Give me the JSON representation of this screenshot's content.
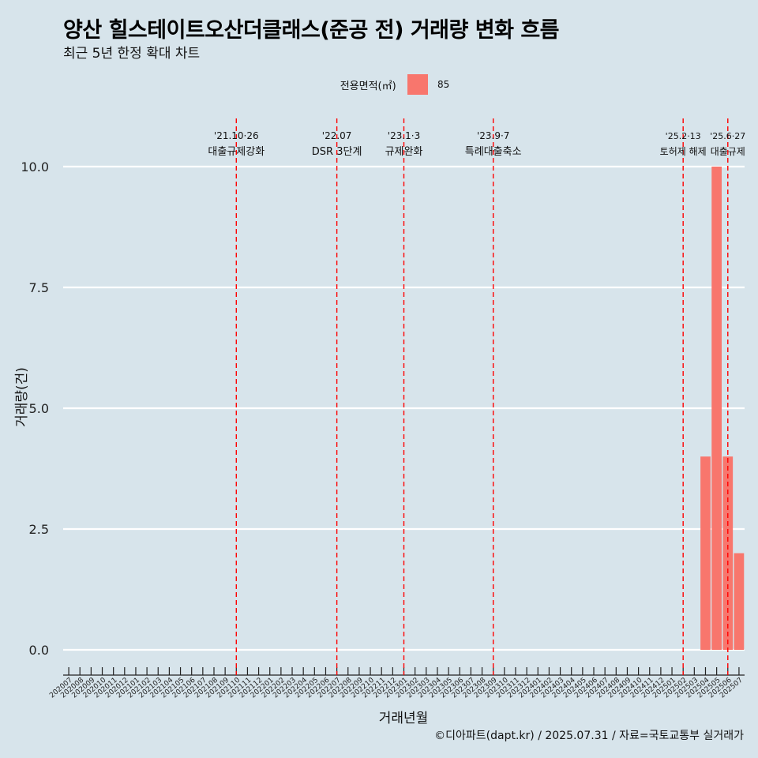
{
  "chart_data": {
    "type": "bar",
    "title": "양산 힐스테이트오산더클래스(준공 전) 거래량 변화 흐름",
    "subtitle": "최근 5년 한정 확대 차트",
    "xlabel": "거래년월",
    "ylabel": "거래량(건)",
    "ylim": [
      0,
      10.5
    ],
    "yticks": [
      "0.0",
      "2.5",
      "5.0",
      "7.5",
      "10.0"
    ],
    "legend": {
      "title": "전용면적(㎡)",
      "entries": [
        {
          "name": "85",
          "color": "#f8766d"
        }
      ],
      "position": "top"
    },
    "categories": [
      "202007",
      "202008",
      "202009",
      "202010",
      "202011",
      "202012",
      "202101",
      "202102",
      "202103",
      "202104",
      "202105",
      "202106",
      "202107",
      "202108",
      "202109",
      "202110",
      "202111",
      "202112",
      "202201",
      "202202",
      "202203",
      "202204",
      "202205",
      "202206",
      "202207",
      "202208",
      "202209",
      "202210",
      "202211",
      "202212",
      "202301",
      "202302",
      "202303",
      "202304",
      "202305",
      "202306",
      "202307",
      "202308",
      "202309",
      "202310",
      "202311",
      "202312",
      "202401",
      "202402",
      "202403",
      "202404",
      "202405",
      "202406",
      "202407",
      "202408",
      "202409",
      "202410",
      "202411",
      "202412",
      "202501",
      "202502",
      "202503",
      "202504",
      "202505",
      "202506",
      "202507"
    ],
    "values": [
      0,
      0,
      0,
      0,
      0,
      0,
      0,
      0,
      0,
      0,
      0,
      0,
      0,
      0,
      0,
      0,
      0,
      0,
      0,
      0,
      0,
      0,
      0,
      0,
      0,
      0,
      0,
      0,
      0,
      0,
      0,
      0,
      0,
      0,
      0,
      0,
      0,
      0,
      0,
      0,
      0,
      0,
      0,
      0,
      0,
      0,
      0,
      0,
      0,
      0,
      0,
      0,
      0,
      0,
      0,
      0,
      0,
      4,
      10,
      4,
      2
    ],
    "bar_color": "#f8766d",
    "grid": true,
    "annotations": [
      {
        "date": "202110",
        "date_label": "'21.10·26",
        "text": "대출규제강화"
      },
      {
        "date": "202207",
        "date_label": "'22.07",
        "text": "DSR 3단계"
      },
      {
        "date": "202301",
        "date_label": "'23.1·3",
        "text": "규제완화"
      },
      {
        "date": "202309",
        "date_label": "'23.9·7",
        "text": "특례대출축소"
      },
      {
        "date": "202502",
        "date_label": "'25.2·13",
        "text": "토허제 해제"
      },
      {
        "date": "202506",
        "date_label": "'25.6·27",
        "text": "대출규제"
      }
    ],
    "caption": "©디아파트(dapt.kr) / 2025.07.31 / 자료=국토교통부 실거래가"
  }
}
